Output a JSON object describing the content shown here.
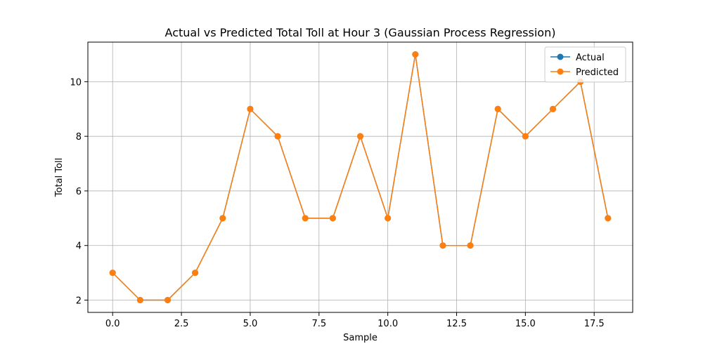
{
  "chart_data": {
    "type": "line",
    "title": "Actual vs Predicted Total Toll at Hour 3 (Gaussian Process Regression)",
    "xlabel": "Sample",
    "ylabel": "Total Toll",
    "x": [
      0,
      1,
      2,
      3,
      4,
      5,
      6,
      7,
      8,
      9,
      10,
      11,
      12,
      13,
      14,
      15,
      16,
      17,
      18
    ],
    "series": [
      {
        "name": "Actual",
        "color": "#1f77b4",
        "values": [
          3,
          2,
          2,
          3,
          5,
          9,
          8,
          5,
          5,
          8,
          5,
          11,
          4,
          4,
          9,
          8,
          9,
          10,
          5
        ]
      },
      {
        "name": "Predicted",
        "color": "#ff7f0e",
        "values": [
          3,
          2,
          2,
          3,
          5,
          9,
          8,
          5,
          5,
          8,
          5,
          11,
          4,
          4,
          9,
          8,
          9,
          10,
          5
        ]
      }
    ],
    "xlim": [
      -0.9,
      18.9
    ],
    "ylim": [
      1.55,
      11.45
    ],
    "x_ticks": [
      0.0,
      2.5,
      5.0,
      7.5,
      10.0,
      12.5,
      15.0,
      17.5
    ],
    "x_tick_labels": [
      "0.0",
      "2.5",
      "5.0",
      "7.5",
      "10.0",
      "12.5",
      "15.0",
      "17.5"
    ],
    "y_ticks": [
      2,
      4,
      6,
      8,
      10
    ],
    "y_tick_labels": [
      "2",
      "4",
      "6",
      "8",
      "10"
    ],
    "grid": true,
    "legend_position": "top-right",
    "marker": "circle"
  }
}
